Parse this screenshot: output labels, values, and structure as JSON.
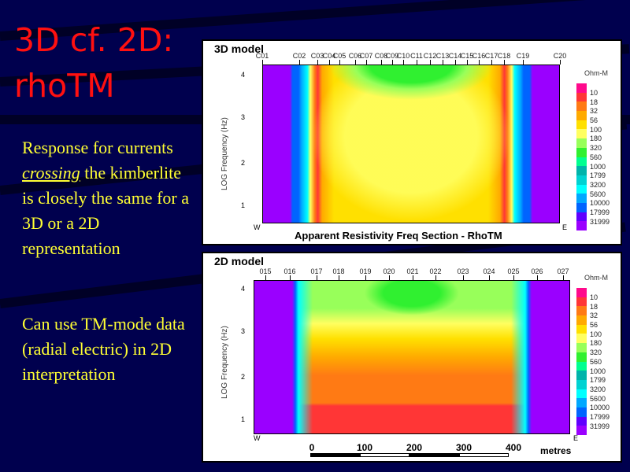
{
  "slide": {
    "title": "3D cf. 2D:\nrhoTM",
    "para1": "Response for currents crossing the kimberlite is closely the same for a 3D or a 2D representation",
    "para1_parts": {
      "a": "Response for currents ",
      "em": "crossing",
      "b": " the kimberlite is closely the same for a 3D or a 2D representation"
    },
    "para2": "Can use TM-mode data (radial electric) in 2D interpretation"
  },
  "top_panel": {
    "label": "3D model",
    "caption": "Apparent Resistivity Freq Section - RhoTM",
    "y_axis_title": "LOG Frequency (Hz)",
    "y_ticks": [
      "4",
      "3",
      "2",
      "1"
    ],
    "west": "W",
    "east": "E",
    "stations": [
      "C01",
      "C02",
      "C03",
      "C04",
      "C05",
      "C06",
      "C07",
      "C08",
      "C09",
      "C10",
      "C11",
      "C12",
      "C13",
      "C14",
      "C15",
      "C16",
      "C17",
      "C18",
      "C19",
      "C20"
    ]
  },
  "bottom_panel": {
    "label": "2D model",
    "y_axis_title": "LOG Frequency (Hz)",
    "y_ticks": [
      "4",
      "3",
      "2",
      "1"
    ],
    "west": "W",
    "east": "E",
    "stations": [
      "015",
      "016",
      "017",
      "018",
      "019",
      "020",
      "021",
      "022",
      "023",
      "024",
      "025",
      "026",
      "027"
    ],
    "scale": {
      "ticks": [
        "0",
        "100",
        "200",
        "300",
        "400"
      ],
      "unit": "metres"
    }
  },
  "legend": {
    "unit": "Ohm-M",
    "labels": [
      "10",
      "18",
      "32",
      "56",
      "100",
      "180",
      "320",
      "560",
      "1000",
      "1799",
      "3200",
      "5600",
      "10000",
      "17999",
      "31999"
    ],
    "colors": [
      "#ff0a8c",
      "#ff3636",
      "#ff7a14",
      "#ffaa00",
      "#ffe000",
      "#ffff60",
      "#98ff5a",
      "#30f030",
      "#00ff90",
      "#00b4aa",
      "#00d2d2",
      "#00ffff",
      "#00a8ff",
      "#0064ff",
      "#6000ff",
      "#9a00ff"
    ]
  }
}
